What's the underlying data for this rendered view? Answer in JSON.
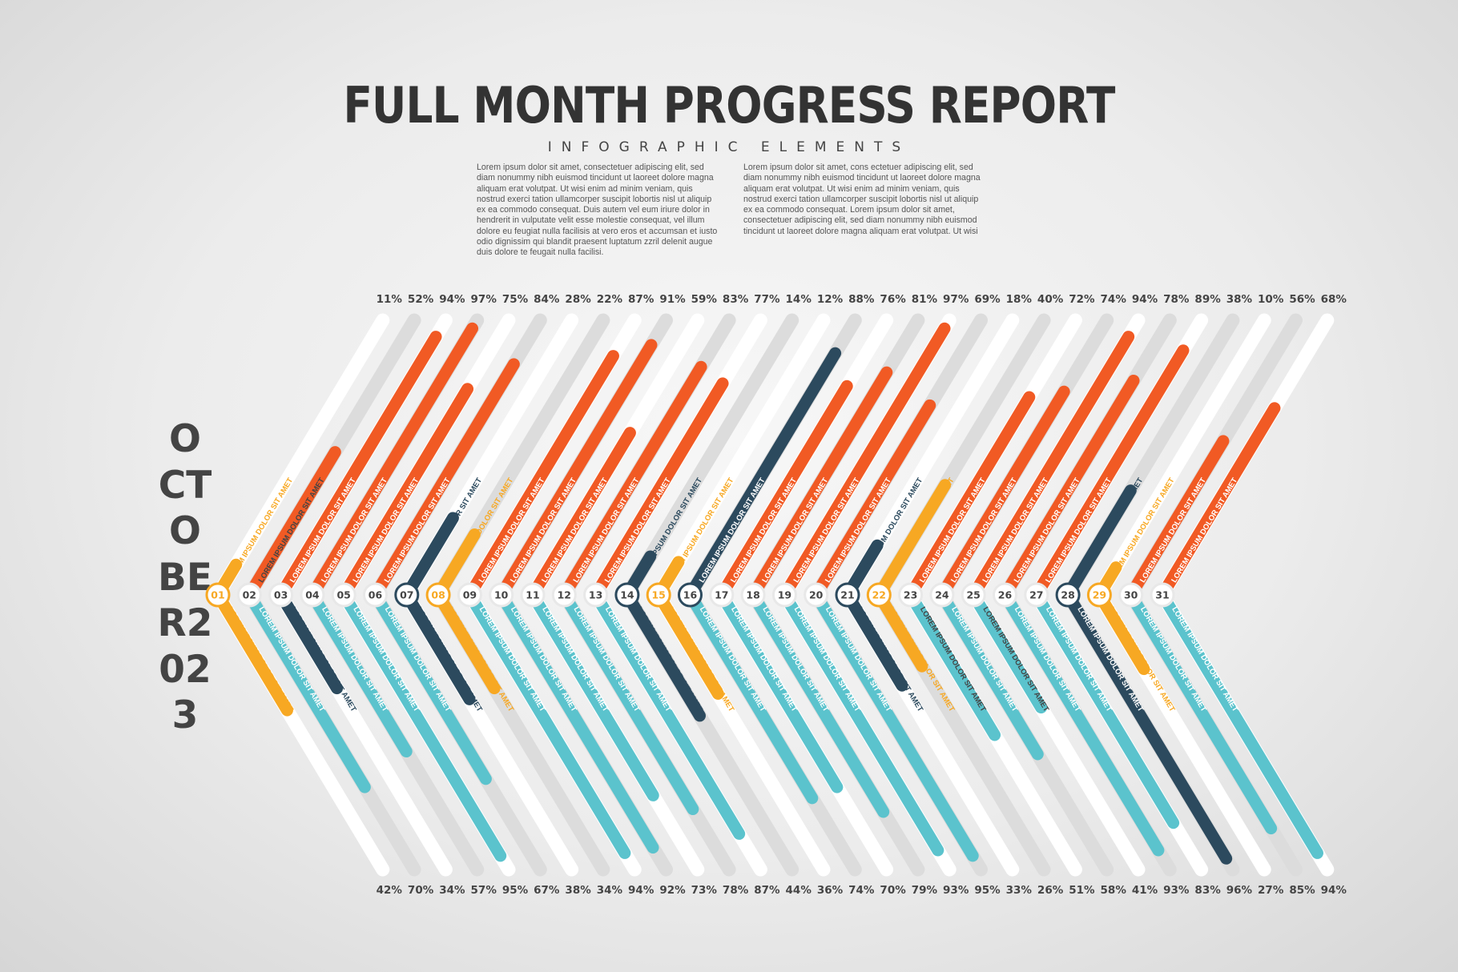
{
  "header": {
    "title": "FULL MONTH PROGRESS REPORT",
    "subtitle": "INFOGRAPHIC ELEMENTS",
    "paragraph_left": "Lorem ipsum dolor sit amet, consectetuer adipiscing elit, sed diam nonummy nibh euismod tincidunt ut laoreet dolore magna aliquam erat volutpat. Ut wisi enim ad minim veniam, quis nostrud exerci tation ullamcorper suscipit lobortis nisl ut aliquip ex ea commodo consequat. Duis autem vel eum iriure dolor in hendrerit in vulputate velit esse molestie consequat, vel illum dolore eu feugiat nulla facilisis at vero eros et accumsan et iusto odio dignissim qui blandit praesent luptatum zzril delenit augue duis dolore te feugait nulla facilisi.",
    "paragraph_right": "Lorem ipsum dolor sit amet, cons ectetuer adipiscing elit, sed diam nonummy nibh euismod tincidunt ut laoreet dolore magna aliquam erat volutpat. Ut wisi enim ad minim veniam, quis nostrud exerci tation ullamcorper suscipit lobortis nisl ut aliquip ex ea commodo consequat. Lorem ipsum dolor sit amet, consectetuer adipiscing elit, sed diam nonummy nibh euismod tincidunt ut laoreet dolore magna aliquam erat volutpat. Ut wisi"
  },
  "side_label": "OCTOBER2023",
  "colors": {
    "orange": "#f15a24",
    "teal": "#5bc3cd",
    "navy": "#2c4a5e",
    "gold": "#f7a823",
    "white": "#ffffff",
    "track_light": "#dcdcdc",
    "text_dark": "#444444"
  },
  "chart_data": {
    "type": "bar",
    "categories": [
      "01",
      "02",
      "03",
      "04",
      "05",
      "06",
      "07",
      "08",
      "09",
      "10",
      "11",
      "12",
      "13",
      "14",
      "15",
      "16",
      "17",
      "18",
      "19",
      "20",
      "21",
      "22",
      "23",
      "24",
      "25",
      "26",
      "27",
      "28",
      "29",
      "30",
      "31"
    ],
    "series": [
      {
        "values": [
          11,
          52,
          94,
          97,
          75,
          84,
          28,
          22,
          87,
          91,
          59,
          83,
          77,
          14,
          12,
          88,
          76,
          81,
          97,
          69,
          18,
          40,
          72,
          74,
          94,
          78,
          89,
          38,
          10,
          56,
          68
        ]
      },
      {
        "values": [
          42,
          70,
          34,
          57,
          95,
          67,
          38,
          34,
          94,
          92,
          73,
          78,
          87,
          44,
          36,
          74,
          70,
          79,
          93,
          95,
          33,
          26,
          51,
          58,
          41,
          93,
          83,
          96,
          27,
          85,
          94
        ]
      }
    ],
    "top_labels": [
      "11%",
      "52%",
      "94%",
      "97%",
      "75%",
      "84%",
      "28%",
      "22%",
      "87%",
      "91%",
      "59%",
      "83%",
      "77%",
      "14%",
      "12%",
      "88%",
      "76%",
      "81%",
      "97%",
      "69%",
      "18%",
      "40%",
      "72%",
      "74%",
      "94%",
      "78%",
      "89%",
      "38%",
      "10%",
      "56%",
      "68%"
    ],
    "bottom_labels": [
      "42%",
      "70%",
      "34%",
      "57%",
      "95%",
      "67%",
      "38%",
      "34%",
      "94%",
      "92%",
      "73%",
      "78%",
      "87%",
      "44%",
      "36%",
      "74%",
      "70%",
      "79%",
      "93%",
      "95%",
      "33%",
      "26%",
      "51%",
      "58%",
      "41%",
      "93%",
      "83%",
      "96%",
      "27%",
      "85%",
      "94%"
    ],
    "upper_colors": [
      "gold",
      "orange",
      "orange",
      "orange",
      "orange",
      "orange",
      "navy",
      "gold",
      "orange",
      "orange",
      "orange",
      "orange",
      "orange",
      "navy",
      "gold",
      "navy",
      "orange",
      "orange",
      "orange",
      "orange",
      "navy",
      "gold",
      "orange",
      "orange",
      "orange",
      "orange",
      "orange",
      "navy",
      "gold",
      "orange",
      "orange"
    ],
    "lower_colors": [
      "gold",
      "teal",
      "navy",
      "teal",
      "teal",
      "teal",
      "navy",
      "gold",
      "teal",
      "teal",
      "teal",
      "teal",
      "teal",
      "navy",
      "gold",
      "teal",
      "teal",
      "teal",
      "teal",
      "teal",
      "navy",
      "gold",
      "teal",
      "teal",
      "teal",
      "teal",
      "teal",
      "navy",
      "gold",
      "teal",
      "teal"
    ],
    "segment_label": "LOREM IPSUM DOLOR SIT AMET",
    "ylim": [
      0,
      100
    ]
  }
}
